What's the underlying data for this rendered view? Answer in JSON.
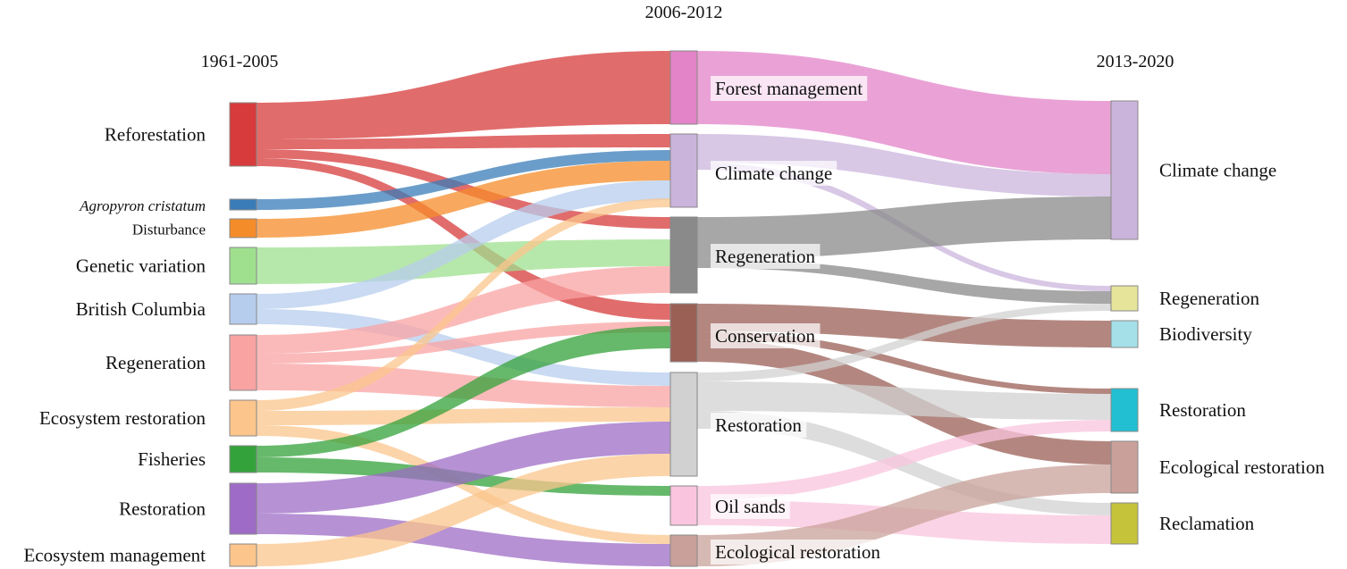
{
  "periods": {
    "p1": "1961-2005",
    "p2": "2006-2012",
    "p3": "2013-2020"
  },
  "nodes_1961_2005": [
    {
      "id": "reforestation",
      "label": "Reforestation",
      "color": "#d73b3b"
    },
    {
      "id": "agropyron",
      "label": "Agropyron cristatum",
      "color": "#3a7cb8",
      "italic": true
    },
    {
      "id": "disturbance",
      "label": "Disturbance",
      "color": "#f58c2a"
    },
    {
      "id": "genetic",
      "label": "Genetic variation",
      "color": "#9fe08f"
    },
    {
      "id": "bc",
      "label": "British Columbia",
      "color": "#b7cdee"
    },
    {
      "id": "regen1",
      "label": "Regeneration",
      "color": "#f9a3a3"
    },
    {
      "id": "ecorest1",
      "label": "Ecosystem restoration",
      "color": "#fbc58c"
    },
    {
      "id": "fisheries",
      "label": "Fisheries",
      "color": "#33a23a"
    },
    {
      "id": "restoration1",
      "label": "Restoration",
      "color": "#9e6cc6"
    },
    {
      "id": "ecomgmt",
      "label": "Ecosystem management",
      "color": "#fbc58c"
    }
  ],
  "nodes_2006_2012": [
    {
      "id": "forestmgmt",
      "label": "Forest management",
      "color": "#e383c8"
    },
    {
      "id": "climate2",
      "label": "Climate change",
      "color": "#cbb4dc"
    },
    {
      "id": "regen2",
      "label": "Regeneration",
      "color": "#8a8a8a"
    },
    {
      "id": "conservation",
      "label": "Conservation",
      "color": "#9a5f55"
    },
    {
      "id": "restoration2",
      "label": "Restoration",
      "color": "#d1d1d1"
    },
    {
      "id": "oilsands",
      "label": "Oil sands",
      "color": "#f9c4de"
    },
    {
      "id": "ecolrest2",
      "label": "Ecological restoration",
      "color": "#c9a19a"
    }
  ],
  "nodes_2013_2020": [
    {
      "id": "climate3",
      "label": "Climate change",
      "color": "#cbb4dc"
    },
    {
      "id": "regen3",
      "label": "Regeneration",
      "color": "#e6e39a"
    },
    {
      "id": "biodiversity",
      "label": "Biodiversity",
      "color": "#a5dfe8"
    },
    {
      "id": "restoration3",
      "label": "Restoration",
      "color": "#22bfd2"
    },
    {
      "id": "ecolrest3",
      "label": "Ecological restoration",
      "color": "#c9a19a"
    },
    {
      "id": "reclamation",
      "label": "Reclamation",
      "color": "#c4c33a"
    }
  ],
  "flows": [
    {
      "source": "reforestation",
      "target": "forestmgmt",
      "color": "#d73b3b"
    },
    {
      "source": "reforestation",
      "target": "climate2",
      "color": "#d73b3b"
    },
    {
      "source": "reforestation",
      "target": "regen2",
      "color": "#d73b3b"
    },
    {
      "source": "reforestation",
      "target": "conservation",
      "color": "#d73b3b"
    },
    {
      "source": "agropyron",
      "target": "climate2",
      "color": "#3a7cb8"
    },
    {
      "source": "disturbance",
      "target": "climate2",
      "color": "#f58c2a"
    },
    {
      "source": "genetic",
      "target": "regen2",
      "color": "#9fe08f"
    },
    {
      "source": "bc",
      "target": "climate2",
      "color": "#b7cdee"
    },
    {
      "source": "bc",
      "target": "restoration2",
      "color": "#b7cdee"
    },
    {
      "source": "regen1",
      "target": "regen2",
      "color": "#f9a3a3"
    },
    {
      "source": "regen1",
      "target": "conservation",
      "color": "#f9a3a3"
    },
    {
      "source": "regen1",
      "target": "restoration2",
      "color": "#f9a3a3"
    },
    {
      "source": "ecorest1",
      "target": "climate2",
      "color": "#fbc58c"
    },
    {
      "source": "ecorest1",
      "target": "restoration2",
      "color": "#fbc58c"
    },
    {
      "source": "ecorest1",
      "target": "ecolrest2",
      "color": "#fbc58c"
    },
    {
      "source": "fisheries",
      "target": "conservation",
      "color": "#33a23a"
    },
    {
      "source": "fisheries",
      "target": "oilsands",
      "color": "#33a23a"
    },
    {
      "source": "restoration1",
      "target": "restoration2",
      "color": "#9e6cc6"
    },
    {
      "source": "restoration1",
      "target": "ecolrest2",
      "color": "#9e6cc6"
    },
    {
      "source": "ecomgmt",
      "target": "restoration2",
      "color": "#fbc58c"
    },
    {
      "source": "forestmgmt",
      "target": "climate3",
      "color": "#e383c8"
    },
    {
      "source": "climate2",
      "target": "climate3",
      "color": "#cbb4dc"
    },
    {
      "source": "climate2",
      "target": "regen3",
      "color": "#cbb4dc"
    },
    {
      "source": "regen2",
      "target": "climate3",
      "color": "#8a8a8a"
    },
    {
      "source": "regen2",
      "target": "regen3",
      "color": "#8a8a8a"
    },
    {
      "source": "conservation",
      "target": "biodiversity",
      "color": "#9a5f55"
    },
    {
      "source": "conservation",
      "target": "restoration3",
      "color": "#9a5f55"
    },
    {
      "source": "conservation",
      "target": "ecolrest3",
      "color": "#9a5f55"
    },
    {
      "source": "restoration2",
      "target": "regen3",
      "color": "#d1d1d1"
    },
    {
      "source": "restoration2",
      "target": "restoration3",
      "color": "#d1d1d1"
    },
    {
      "source": "restoration2",
      "target": "reclamation",
      "color": "#d1d1d1"
    },
    {
      "source": "oilsands",
      "target": "restoration3",
      "color": "#f9c4de"
    },
    {
      "source": "oilsands",
      "target": "reclamation",
      "color": "#f9c4de"
    },
    {
      "source": "ecolrest2",
      "target": "ecolrest3",
      "color": "#c9a19a"
    }
  ]
}
